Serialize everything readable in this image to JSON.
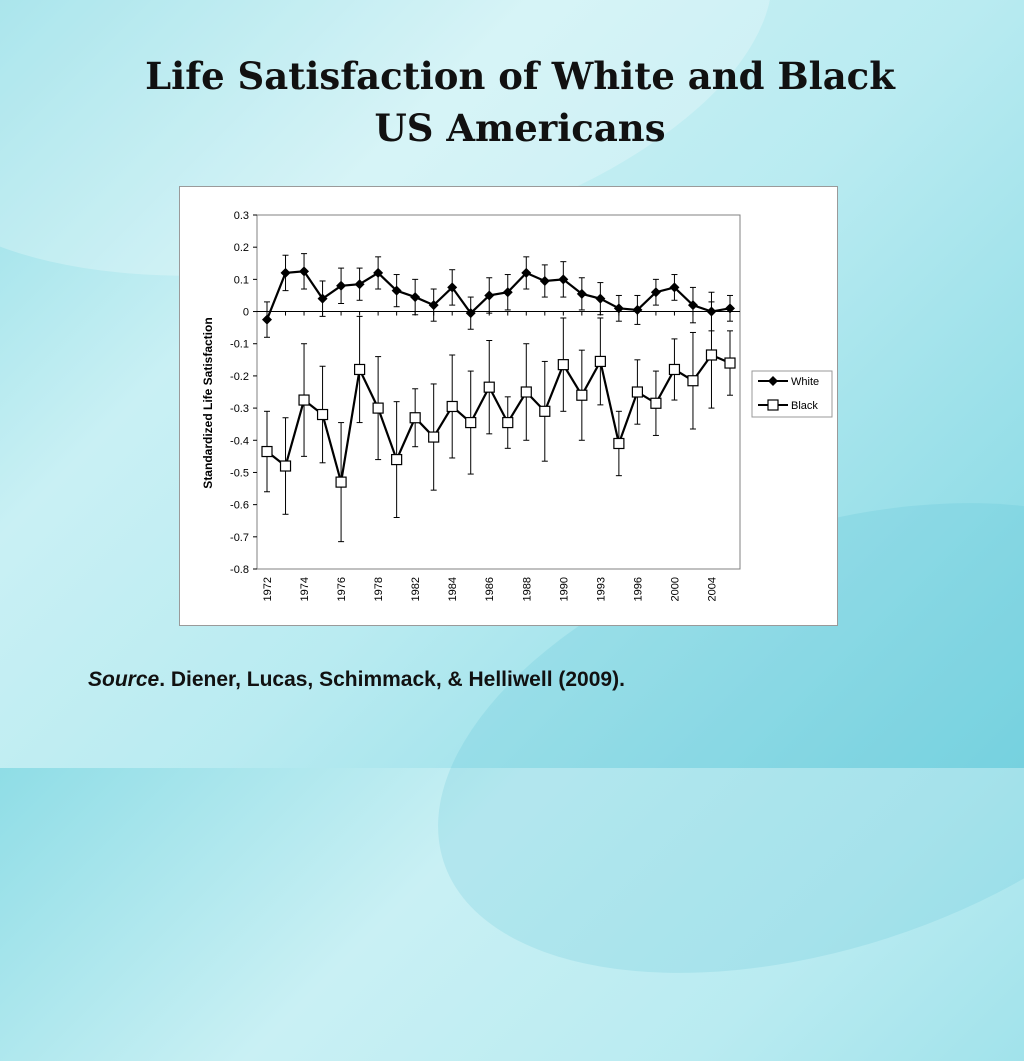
{
  "slide": {
    "title": "Life Satisfaction of White and Black US Americans",
    "source_label": "Source",
    "source_text": ". Diener, Lucas, Schimmack, & Helliwell (2009)."
  },
  "chart_data": {
    "type": "line",
    "title": "",
    "xlabel": "",
    "ylabel": "Standardized Life Satisfaction",
    "ylim": [
      -0.8,
      0.3
    ],
    "yticks": [
      "0.3",
      "0.2",
      "0.1",
      "0",
      "-0.1",
      "-0.2",
      "-0.3",
      "-0.4",
      "-0.5",
      "-0.6",
      "-0.7",
      "-0.8"
    ],
    "xtick_labels": [
      "1972",
      "1974",
      "1976",
      "1978",
      "1982",
      "1984",
      "1986",
      "1988",
      "1990",
      "1993",
      "1996",
      "2000",
      "2004"
    ],
    "error_bars": true,
    "legend": "right",
    "series": [
      {
        "name": "White",
        "marker": "filled-diamond",
        "color": "#000000",
        "values": [
          -0.025,
          0.12,
          0.125,
          0.04,
          0.08,
          0.085,
          0.12,
          0.065,
          0.045,
          0.02,
          0.075,
          -0.005,
          0.05,
          0.06,
          0.12,
          0.095,
          0.1,
          0.055,
          0.04,
          0.01,
          0.005,
          0.06,
          0.075,
          0.02,
          0.0,
          0.01
        ],
        "err": [
          0.055,
          0.055,
          0.055,
          0.055,
          0.055,
          0.05,
          0.05,
          0.05,
          0.055,
          0.05,
          0.055,
          0.05,
          0.055,
          0.055,
          0.05,
          0.05,
          0.055,
          0.05,
          0.05,
          0.04,
          0.045,
          0.04,
          0.04,
          0.055,
          0.06,
          0.04
        ]
      },
      {
        "name": "Black",
        "marker": "open-square",
        "color": "#000000",
        "values": [
          -0.435,
          -0.48,
          -0.275,
          -0.32,
          -0.53,
          -0.18,
          -0.3,
          -0.46,
          -0.33,
          -0.39,
          -0.295,
          -0.345,
          -0.235,
          -0.345,
          -0.25,
          -0.31,
          -0.165,
          -0.26,
          -0.155,
          -0.41,
          -0.25,
          -0.285,
          -0.18,
          -0.215,
          -0.135,
          -0.16
        ],
        "err": [
          0.125,
          0.15,
          0.175,
          0.15,
          0.185,
          0.165,
          0.16,
          0.18,
          0.09,
          0.165,
          0.16,
          0.16,
          0.145,
          0.08,
          0.15,
          0.155,
          0.145,
          0.14,
          0.135,
          0.1,
          0.1,
          0.1,
          0.095,
          0.15,
          0.165,
          0.1
        ]
      }
    ]
  }
}
